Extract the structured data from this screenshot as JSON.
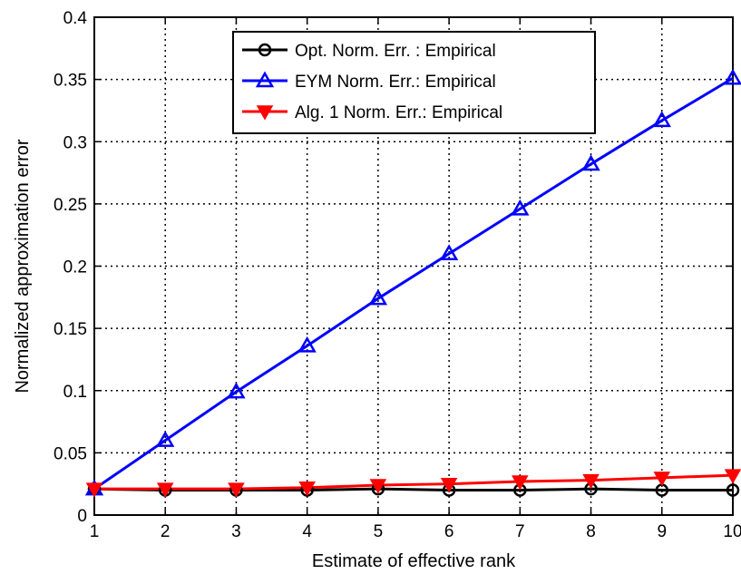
{
  "chart_data": {
    "type": "line",
    "title": "",
    "xlabel": "Estimate of effective rank",
    "ylabel": "Normalized approximation error",
    "xlim": [
      1,
      10
    ],
    "ylim": [
      0,
      0.4
    ],
    "x": [
      1,
      2,
      3,
      4,
      5,
      6,
      7,
      8,
      9,
      10
    ],
    "xticks": [
      "1",
      "2",
      "3",
      "4",
      "5",
      "6",
      "7",
      "8",
      "9",
      "10"
    ],
    "yticks": [
      "0",
      "0.05",
      "0.1",
      "0.15",
      "0.2",
      "0.25",
      "0.3",
      "0.35",
      "0.4"
    ],
    "grid": true,
    "legend_position": "top-right",
    "series": [
      {
        "name": "Opt. Norm. Err. : Empirical",
        "color": "#000000",
        "marker": "circle",
        "values": [
          0.021,
          0.02,
          0.02,
          0.02,
          0.021,
          0.02,
          0.02,
          0.021,
          0.02,
          0.02
        ]
      },
      {
        "name": "EYM Norm. Err.: Empirical",
        "color": "#0000ff",
        "marker": "triangle-up",
        "values": [
          0.021,
          0.06,
          0.099,
          0.136,
          0.174,
          0.21,
          0.246,
          0.282,
          0.317,
          0.351
        ]
      },
      {
        "name": "Alg. 1 Norm. Err.: Empirical",
        "color": "#ff0000",
        "marker": "triangle-down",
        "values": [
          0.021,
          0.021,
          0.021,
          0.022,
          0.024,
          0.025,
          0.027,
          0.028,
          0.03,
          0.032
        ]
      }
    ]
  }
}
